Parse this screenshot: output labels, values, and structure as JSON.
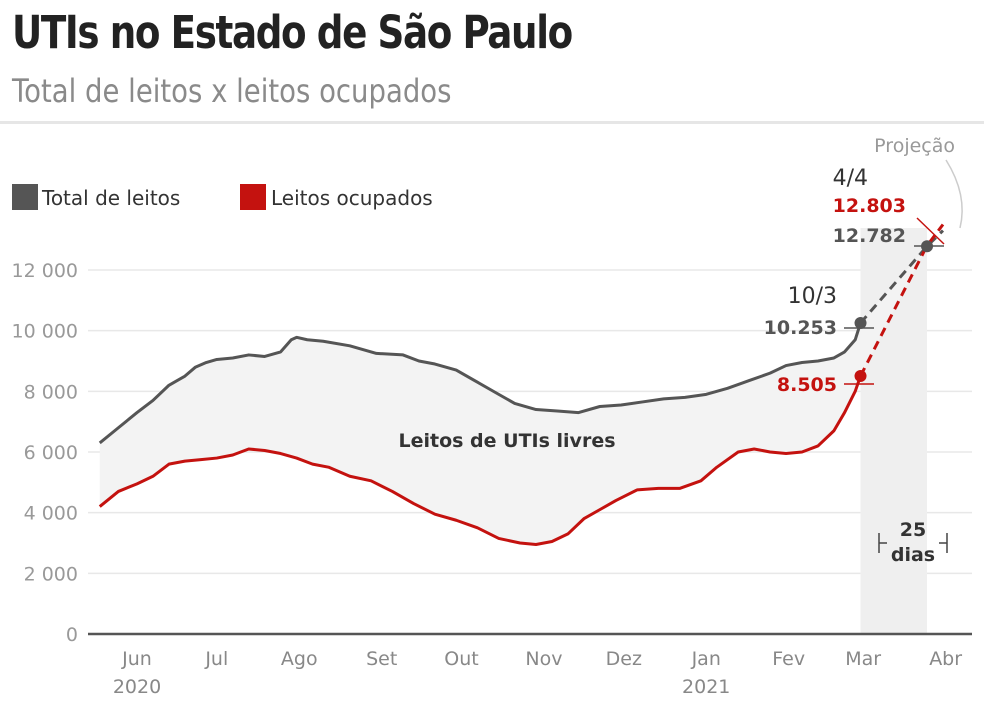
{
  "header": {
    "title": "UTIs no Estado de São Paulo",
    "subtitle": "Total de leitos x leitos ocupados"
  },
  "chart_data": {
    "type": "line",
    "title": "UTIs no Estado de São Paulo",
    "subtitle": "Total de leitos x leitos ocupados",
    "xlabel": "",
    "ylabel": "",
    "x_unit": "days since 2020-06-01",
    "xlim": [
      -22,
      313
    ],
    "ylim": [
      0,
      13500
    ],
    "grid": true,
    "y_ticks": [
      0,
      2000,
      4000,
      6000,
      8000,
      10000,
      12000
    ],
    "y_tick_labels": [
      "0",
      "2 000",
      "4 000",
      "6 000",
      "8 000",
      "10 000",
      "12 000"
    ],
    "x_ticks": [
      0,
      30,
      61,
      92,
      122,
      153,
      183,
      214,
      245,
      273,
      304
    ],
    "x_tick_labels": [
      "Jun",
      "Jul",
      "Ago",
      "Set",
      "Out",
      "Nov",
      "Dez",
      "Jan",
      "Fev",
      "Mar",
      "Abr"
    ],
    "x_year_labels": [
      {
        "x": 0,
        "label": "2020"
      },
      {
        "x": 214,
        "label": "2021"
      }
    ],
    "legend": {
      "placement": "top-left",
      "entries": [
        "Total de leitos",
        "Leitos ocupados"
      ]
    },
    "colors": {
      "total": "#555555",
      "ocupados": "#c4120f",
      "fill": "#f3f3f3",
      "projection_band": "#efefef",
      "grid": "#e8e8e8",
      "axis": "#555555"
    },
    "series": [
      {
        "name": "Total de leitos",
        "x": [
          -14,
          -7,
          0,
          6,
          12,
          18,
          22,
          26,
          30,
          36,
          42,
          48,
          54,
          58,
          60,
          64,
          70,
          80,
          90,
          100,
          106,
          112,
          120,
          128,
          136,
          142,
          150,
          158,
          166,
          174,
          182,
          190,
          198,
          206,
          214,
          222,
          230,
          238,
          244,
          250,
          256,
          262,
          266,
          270,
          272
        ],
        "values": [
          6300,
          6800,
          7300,
          7700,
          8200,
          8500,
          8800,
          8950,
          9050,
          9100,
          9200,
          9150,
          9300,
          9700,
          9780,
          9700,
          9650,
          9500,
          9250,
          9200,
          9000,
          8900,
          8700,
          8300,
          7900,
          7600,
          7400,
          7350,
          7300,
          7500,
          7550,
          7650,
          7750,
          7800,
          7900,
          8100,
          8350,
          8600,
          8850,
          8950,
          9000,
          9100,
          9300,
          9700,
          10253
        ]
      },
      {
        "name": "Leitos ocupados",
        "x": [
          -14,
          -7,
          0,
          6,
          12,
          18,
          24,
          30,
          36,
          42,
          48,
          54,
          60,
          66,
          72,
          80,
          88,
          96,
          104,
          112,
          120,
          128,
          136,
          144,
          150,
          156,
          162,
          168,
          174,
          180,
          188,
          196,
          204,
          212,
          218,
          226,
          232,
          238,
          244,
          250,
          256,
          262,
          266,
          270,
          272
        ],
        "values": [
          4200,
          4700,
          4950,
          5200,
          5600,
          5700,
          5750,
          5800,
          5900,
          6100,
          6050,
          5950,
          5800,
          5600,
          5500,
          5200,
          5050,
          4700,
          4300,
          3950,
          3750,
          3500,
          3150,
          3000,
          2950,
          3050,
          3300,
          3800,
          4100,
          4400,
          4750,
          4800,
          4800,
          5050,
          5500,
          6000,
          6100,
          6000,
          5950,
          6000,
          6200,
          6700,
          7300,
          8000,
          8505
        ]
      },
      {
        "name": "Projeção Total de leitos",
        "style": "dashed",
        "x": [
          272,
          297,
          303
        ],
        "values": [
          10253,
          12782,
          13300
        ]
      },
      {
        "name": "Projeção Leitos ocupados",
        "style": "dashed",
        "x": [
          272,
          297,
          303
        ],
        "values": [
          8505,
          12803,
          13500
        ]
      }
    ],
    "projection_band": {
      "from": 272,
      "to": 297
    },
    "annotations": {
      "fill_label": "Leitos de UTIs livres",
      "date_1": "10/3",
      "total_1": "10.253",
      "ocupados_1": "8.505",
      "date_2": "4/4",
      "ocupados_2": "12.803",
      "total_2": "12.782",
      "projection": "Projeção",
      "days_value": "25",
      "days_unit": "dias"
    }
  }
}
